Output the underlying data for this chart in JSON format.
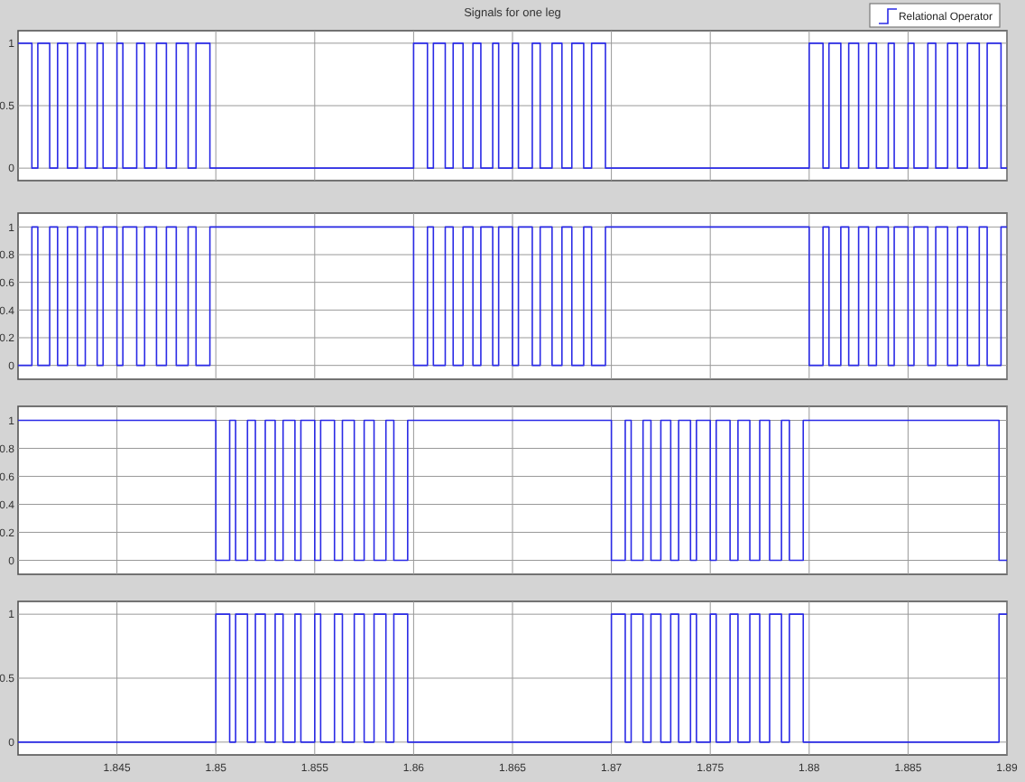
{
  "chart_data": [
    {
      "type": "step",
      "title": "Signals for one leg",
      "legend": "top right",
      "grid": true,
      "tick_labels": "y",
      "xlim": [
        1.84,
        1.89
      ],
      "xticks": [
        1.845,
        1.85,
        1.855,
        1.86,
        1.865,
        1.87,
        1.875,
        1.88,
        1.885,
        1.89
      ],
      "ylim": [
        -0.1,
        1.1
      ],
      "yticks": [
        0,
        0.5,
        1
      ],
      "series": [
        {
          "name": "Relational Operator",
          "color": "#2a2ae6",
          "x": [
            1.84,
            1.8407,
            1.841,
            1.8416,
            1.842,
            1.8425,
            1.843,
            1.8434,
            1.844,
            1.8443,
            1.845,
            1.8453,
            1.846,
            1.8464,
            1.847,
            1.8475,
            1.848,
            1.8486,
            1.849,
            1.8497,
            1.86,
            1.8607,
            1.861,
            1.8616,
            1.862,
            1.8625,
            1.863,
            1.8634,
            1.864,
            1.8643,
            1.865,
            1.8653,
            1.866,
            1.8664,
            1.867,
            1.8675,
            1.868,
            1.8686,
            1.869,
            1.8697,
            1.88,
            1.8807,
            1.881,
            1.8816,
            1.882,
            1.8825,
            1.883,
            1.8834,
            1.884,
            1.8843,
            1.885,
            1.8853,
            1.886,
            1.8864,
            1.887,
            1.8875,
            1.888,
            1.8886,
            1.889,
            1.8897,
            1.89
          ],
          "values": [
            1,
            0,
            1,
            0,
            1,
            0,
            1,
            0,
            1,
            0,
            1,
            0,
            1,
            0,
            1,
            0,
            1,
            0,
            1,
            0,
            1,
            0,
            1,
            0,
            1,
            0,
            1,
            0,
            1,
            0,
            1,
            0,
            1,
            0,
            1,
            0,
            1,
            0,
            1,
            0,
            1,
            0,
            1,
            0,
            1,
            0,
            1,
            0,
            1,
            0,
            1,
            0,
            1,
            0,
            1,
            0,
            1,
            0,
            1,
            0,
            0
          ]
        }
      ]
    },
    {
      "type": "step",
      "grid": true,
      "tick_labels": "y",
      "xlim": [
        1.84,
        1.89
      ],
      "xticks": [
        1.845,
        1.85,
        1.855,
        1.86,
        1.865,
        1.87,
        1.875,
        1.88,
        1.885,
        1.89
      ],
      "ylim": [
        -0.1,
        1.1
      ],
      "yticks": [
        0,
        0.2,
        0.4,
        0.6,
        0.8,
        1
      ],
      "series": [
        {
          "color": "#2a2ae6",
          "x": [
            1.84,
            1.8407,
            1.841,
            1.8416,
            1.842,
            1.8425,
            1.843,
            1.8434,
            1.844,
            1.8443,
            1.845,
            1.8453,
            1.846,
            1.8464,
            1.847,
            1.8475,
            1.848,
            1.8486,
            1.849,
            1.8497,
            1.86,
            1.8607,
            1.861,
            1.8616,
            1.862,
            1.8625,
            1.863,
            1.8634,
            1.864,
            1.8643,
            1.865,
            1.8653,
            1.866,
            1.8664,
            1.867,
            1.8675,
            1.868,
            1.8686,
            1.869,
            1.8697,
            1.88,
            1.8807,
            1.881,
            1.8816,
            1.882,
            1.8825,
            1.883,
            1.8834,
            1.884,
            1.8843,
            1.885,
            1.8853,
            1.886,
            1.8864,
            1.887,
            1.8875,
            1.888,
            1.8886,
            1.889,
            1.8897,
            1.89
          ],
          "values": [
            0,
            1,
            0,
            1,
            0,
            1,
            0,
            1,
            0,
            1,
            0,
            1,
            0,
            1,
            0,
            1,
            0,
            1,
            0,
            1,
            0,
            1,
            0,
            1,
            0,
            1,
            0,
            1,
            0,
            1,
            0,
            1,
            0,
            1,
            0,
            1,
            0,
            1,
            0,
            1,
            0,
            1,
            0,
            1,
            0,
            1,
            0,
            1,
            0,
            1,
            0,
            1,
            0,
            1,
            0,
            1,
            0,
            1,
            0,
            1,
            1
          ]
        }
      ]
    },
    {
      "type": "step",
      "grid": true,
      "tick_labels": "y",
      "xlim": [
        1.84,
        1.89
      ],
      "xticks": [
        1.845,
        1.85,
        1.855,
        1.86,
        1.865,
        1.87,
        1.875,
        1.88,
        1.885,
        1.89
      ],
      "ylim": [
        -0.1,
        1.1
      ],
      "yticks": [
        0,
        0.2,
        0.4,
        0.6,
        0.8,
        1
      ],
      "series": [
        {
          "color": "#2a2ae6",
          "x": [
            1.84,
            1.85,
            1.8507,
            1.851,
            1.8516,
            1.852,
            1.8525,
            1.853,
            1.8534,
            1.854,
            1.8543,
            1.855,
            1.8553,
            1.856,
            1.8564,
            1.857,
            1.8575,
            1.858,
            1.8586,
            1.859,
            1.8597,
            1.87,
            1.8707,
            1.871,
            1.8716,
            1.872,
            1.8725,
            1.873,
            1.8734,
            1.874,
            1.8743,
            1.875,
            1.8753,
            1.876,
            1.8764,
            1.877,
            1.8775,
            1.878,
            1.8786,
            1.879,
            1.8797,
            1.8896,
            1.89
          ],
          "values": [
            1,
            0,
            1,
            0,
            1,
            0,
            1,
            0,
            1,
            0,
            1,
            0,
            1,
            0,
            1,
            0,
            1,
            0,
            1,
            0,
            1,
            0,
            1,
            0,
            1,
            0,
            1,
            0,
            1,
            0,
            1,
            0,
            1,
            0,
            1,
            0,
            1,
            0,
            1,
            0,
            1,
            0,
            0
          ]
        }
      ]
    },
    {
      "type": "step",
      "grid": true,
      "xlim": [
        1.84,
        1.89
      ],
      "xticks": [
        1.845,
        1.85,
        1.855,
        1.86,
        1.865,
        1.87,
        1.875,
        1.88,
        1.885,
        1.89
      ],
      "ylim": [
        -0.1,
        1.1
      ],
      "yticks": [
        0,
        0.5,
        1
      ],
      "series": [
        {
          "color": "#2a2ae6",
          "x": [
            1.84,
            1.85,
            1.8507,
            1.851,
            1.8516,
            1.852,
            1.8525,
            1.853,
            1.8534,
            1.854,
            1.8543,
            1.855,
            1.8553,
            1.856,
            1.8564,
            1.857,
            1.8575,
            1.858,
            1.8586,
            1.859,
            1.8597,
            1.87,
            1.8707,
            1.871,
            1.8716,
            1.872,
            1.8725,
            1.873,
            1.8734,
            1.874,
            1.8743,
            1.875,
            1.8753,
            1.876,
            1.8764,
            1.877,
            1.8775,
            1.878,
            1.8786,
            1.879,
            1.8797,
            1.8896,
            1.89
          ],
          "values": [
            0,
            1,
            0,
            1,
            0,
            1,
            0,
            1,
            0,
            1,
            0,
            1,
            0,
            1,
            0,
            1,
            0,
            1,
            0,
            1,
            0,
            1,
            0,
            1,
            0,
            1,
            0,
            1,
            0,
            1,
            0,
            1,
            0,
            1,
            0,
            1,
            0,
            1,
            0,
            1,
            0,
            1,
            1
          ]
        }
      ]
    }
  ]
}
